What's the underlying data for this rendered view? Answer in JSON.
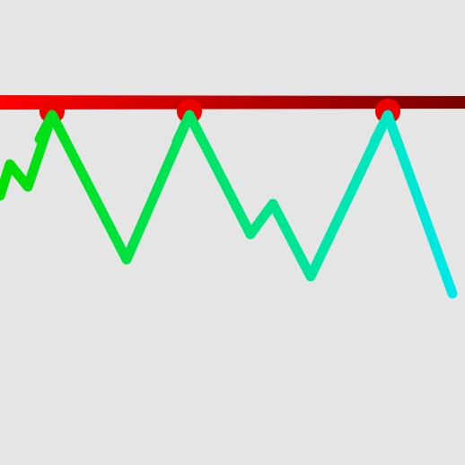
{
  "colors": {
    "background": "#e5e5e5",
    "bar_start": "#ff0000",
    "bar_end": "#7a0000",
    "contact_dot": "#ee0000",
    "line_start": "#00e000",
    "line_end": "#00e8ee"
  }
}
